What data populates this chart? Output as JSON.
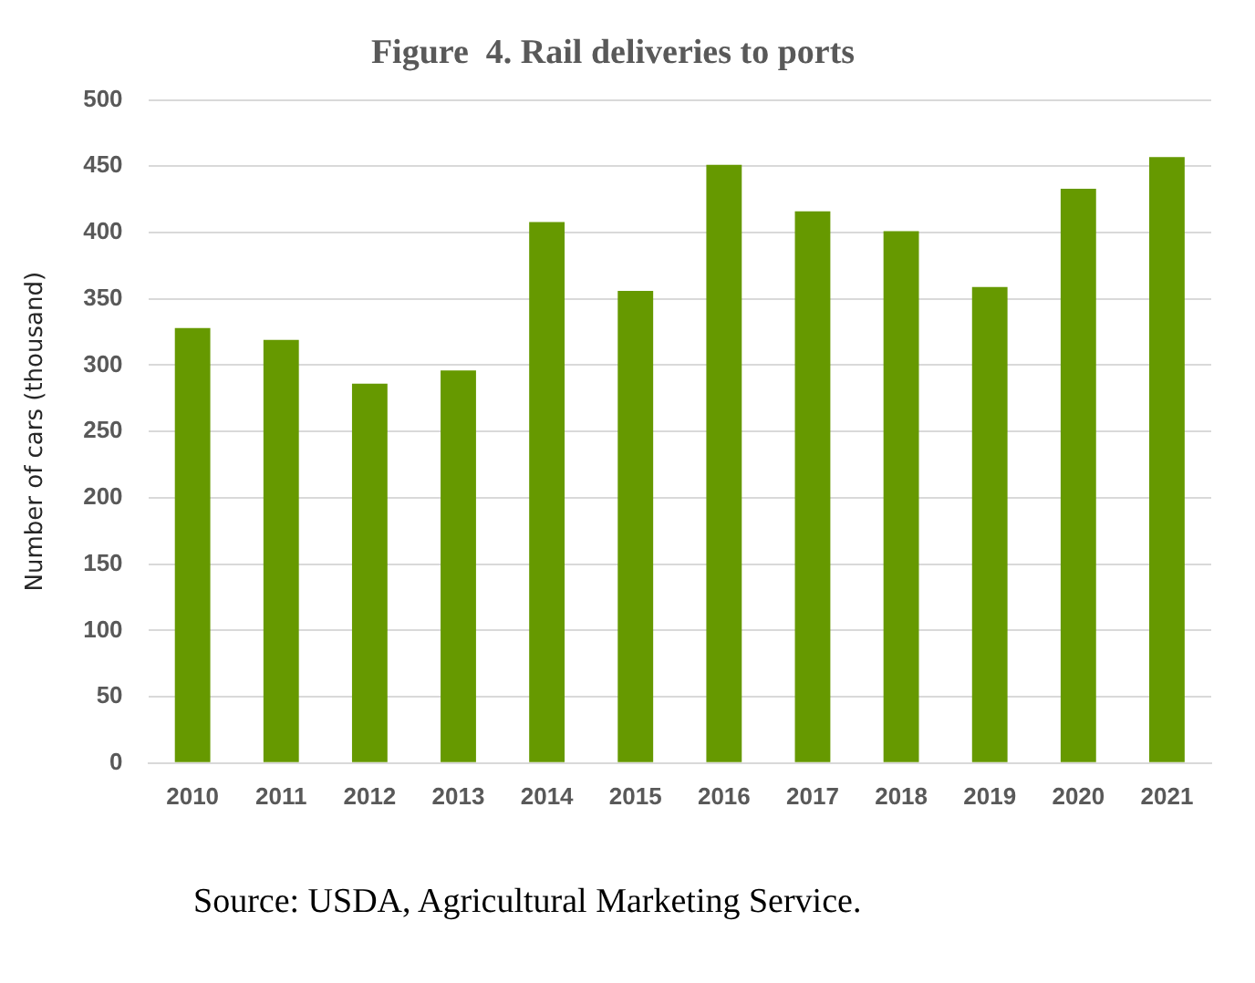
{
  "chart_data": {
    "type": "bar",
    "title": "Figure  4. Rail deliveries to ports",
    "ylabel": "Number of cars (thousand)",
    "categories": [
      "2010",
      "2011",
      "2012",
      "2013",
      "2014",
      "2015",
      "2016",
      "2017",
      "2018",
      "2019",
      "2020",
      "2021"
    ],
    "values": [
      328,
      319,
      286,
      296,
      408,
      356,
      451,
      416,
      401,
      359,
      433,
      457
    ],
    "color": "#669900",
    "ylim": [
      0,
      500
    ],
    "yticks": [
      0,
      50,
      100,
      150,
      200,
      250,
      300,
      350,
      400,
      450,
      500
    ],
    "grid": "y",
    "legend": false,
    "annotations": [
      "Source: USDA, Agricultural  Marketing  Service."
    ]
  }
}
